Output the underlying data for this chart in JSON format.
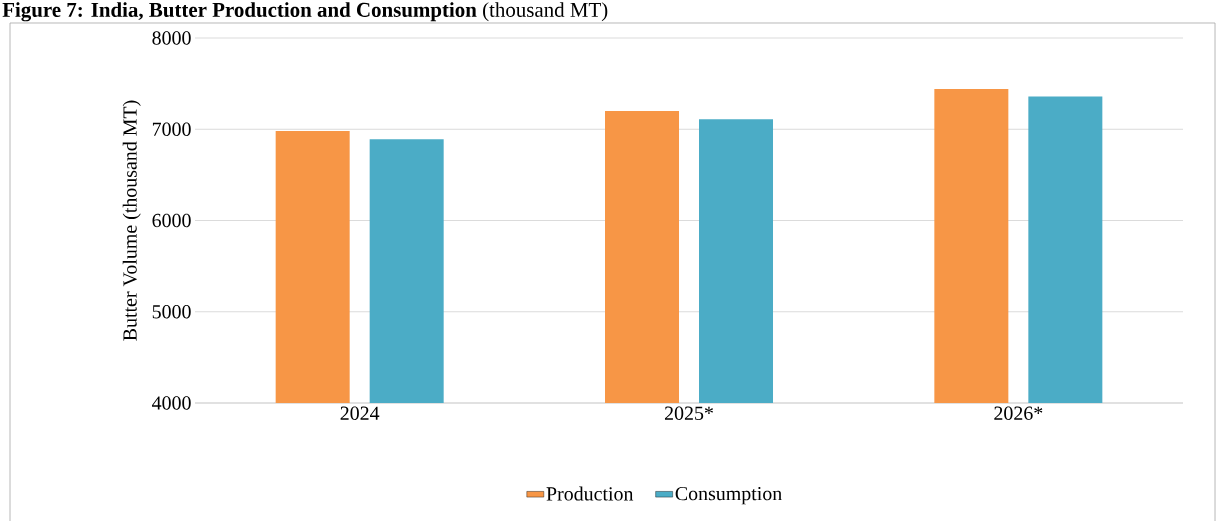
{
  "chart_data": {
    "type": "bar",
    "title": "**Figure 7: India, Butter Production and Consumption** (thousand MT)",
    "ylabel": "Butter Volume (thousand MT)",
    "categories": [
      "2024",
      "2025*",
      "2026*"
    ],
    "series": [
      {
        "name": "Production",
        "color": "#f79646",
        "values": [
          6980,
          7200,
          7440
        ]
      },
      {
        "name": "Consumption",
        "color": "#4bacc6",
        "values": [
          6890,
          7110,
          7360
        ]
      }
    ],
    "ylim": [
      4000,
      8000
    ],
    "yticks": [
      4000,
      5000,
      6000,
      7000,
      8000
    ],
    "grid": "y",
    "legend": "bottom"
  }
}
